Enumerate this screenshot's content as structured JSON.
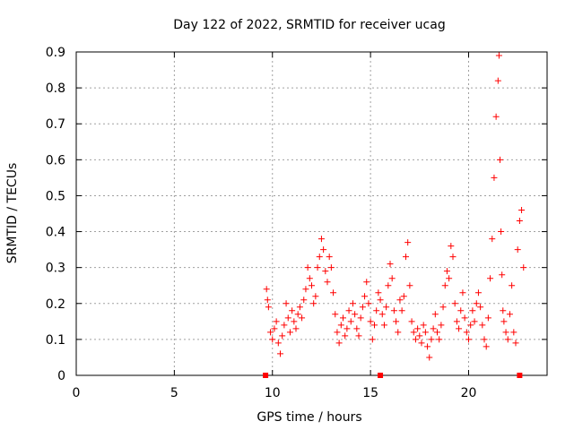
{
  "chart_data": {
    "type": "scatter",
    "title": "Day 122 of 2022, SRMTID for receiver ucag",
    "xlabel": "GPS time / hours",
    "ylabel": "SRMTID / TECUs",
    "xlim": [
      0,
      24
    ],
    "ylim": [
      0,
      0.9
    ],
    "xticks": [
      0,
      5,
      10,
      15,
      20
    ],
    "xtick_labels": [
      "0",
      "5",
      "10",
      "15",
      "20"
    ],
    "yticks": [
      0,
      0.1,
      0.2,
      0.3,
      0.4,
      0.5,
      0.6,
      0.7,
      0.8,
      0.9
    ],
    "ytick_labels": [
      "0",
      "0.1",
      "0.2",
      "0.3",
      "0.4",
      "0.5",
      "0.6",
      "0.7",
      "0.8",
      "0.9"
    ],
    "grid": true,
    "marker": "+",
    "color": "#ff0000",
    "axis_marks_x": [
      9.65,
      15.5,
      22.6
    ],
    "series": [
      {
        "name": "SRMTID",
        "x": [
          9.7,
          9.75,
          9.8,
          9.9,
          10.0,
          10.1,
          10.2,
          10.3,
          10.4,
          10.5,
          10.6,
          10.7,
          10.8,
          10.9,
          11.0,
          11.1,
          11.2,
          11.3,
          11.4,
          11.5,
          11.6,
          11.7,
          11.8,
          11.9,
          12.0,
          12.1,
          12.2,
          12.3,
          12.4,
          12.5,
          12.6,
          12.7,
          12.8,
          12.9,
          13.0,
          13.1,
          13.2,
          13.3,
          13.4,
          13.5,
          13.6,
          13.7,
          13.8,
          13.9,
          14.0,
          14.1,
          14.2,
          14.3,
          14.4,
          14.5,
          14.6,
          14.7,
          14.8,
          14.9,
          15.0,
          15.1,
          15.2,
          15.3,
          15.4,
          15.5,
          15.6,
          15.7,
          15.8,
          15.9,
          16.0,
          16.1,
          16.2,
          16.3,
          16.4,
          16.5,
          16.6,
          16.7,
          16.8,
          16.9,
          17.0,
          17.1,
          17.2,
          17.3,
          17.4,
          17.5,
          17.6,
          17.7,
          17.8,
          17.9,
          18.0,
          18.1,
          18.2,
          18.3,
          18.4,
          18.5,
          18.6,
          18.7,
          18.8,
          18.9,
          19.0,
          19.1,
          19.2,
          19.3,
          19.4,
          19.5,
          19.6,
          19.7,
          19.8,
          19.9,
          20.0,
          20.1,
          20.2,
          20.3,
          20.4,
          20.5,
          20.6,
          20.7,
          20.8,
          20.9,
          21.0,
          21.1,
          21.2,
          21.3,
          21.4,
          21.5,
          21.55,
          21.6,
          21.65,
          21.7,
          21.75,
          21.8,
          21.9,
          22.0,
          22.1,
          22.2,
          22.3,
          22.4,
          22.5,
          22.6,
          22.7,
          22.8
        ],
        "y": [
          0.24,
          0.21,
          0.19,
          0.12,
          0.1,
          0.13,
          0.15,
          0.09,
          0.06,
          0.11,
          0.14,
          0.2,
          0.16,
          0.12,
          0.18,
          0.15,
          0.13,
          0.17,
          0.19,
          0.16,
          0.21,
          0.24,
          0.3,
          0.27,
          0.25,
          0.2,
          0.22,
          0.3,
          0.33,
          0.38,
          0.35,
          0.29,
          0.26,
          0.33,
          0.3,
          0.23,
          0.17,
          0.12,
          0.09,
          0.14,
          0.16,
          0.11,
          0.13,
          0.18,
          0.15,
          0.2,
          0.17,
          0.13,
          0.11,
          0.16,
          0.19,
          0.22,
          0.26,
          0.2,
          0.15,
          0.1,
          0.14,
          0.18,
          0.23,
          0.21,
          0.17,
          0.14,
          0.19,
          0.25,
          0.31,
          0.27,
          0.18,
          0.15,
          0.12,
          0.21,
          0.18,
          0.22,
          0.33,
          0.37,
          0.25,
          0.15,
          0.12,
          0.1,
          0.13,
          0.11,
          0.09,
          0.14,
          0.12,
          0.08,
          0.05,
          0.1,
          0.13,
          0.17,
          0.12,
          0.1,
          0.14,
          0.19,
          0.25,
          0.29,
          0.27,
          0.36,
          0.33,
          0.2,
          0.15,
          0.13,
          0.18,
          0.23,
          0.16,
          0.12,
          0.1,
          0.14,
          0.18,
          0.15,
          0.2,
          0.23,
          0.19,
          0.14,
          0.1,
          0.08,
          0.16,
          0.27,
          0.38,
          0.55,
          0.72,
          0.82,
          0.89,
          0.6,
          0.4,
          0.28,
          0.18,
          0.15,
          0.12,
          0.1,
          0.17,
          0.25,
          0.12,
          0.09,
          0.35,
          0.43,
          0.46,
          0.3
        ]
      }
    ]
  }
}
